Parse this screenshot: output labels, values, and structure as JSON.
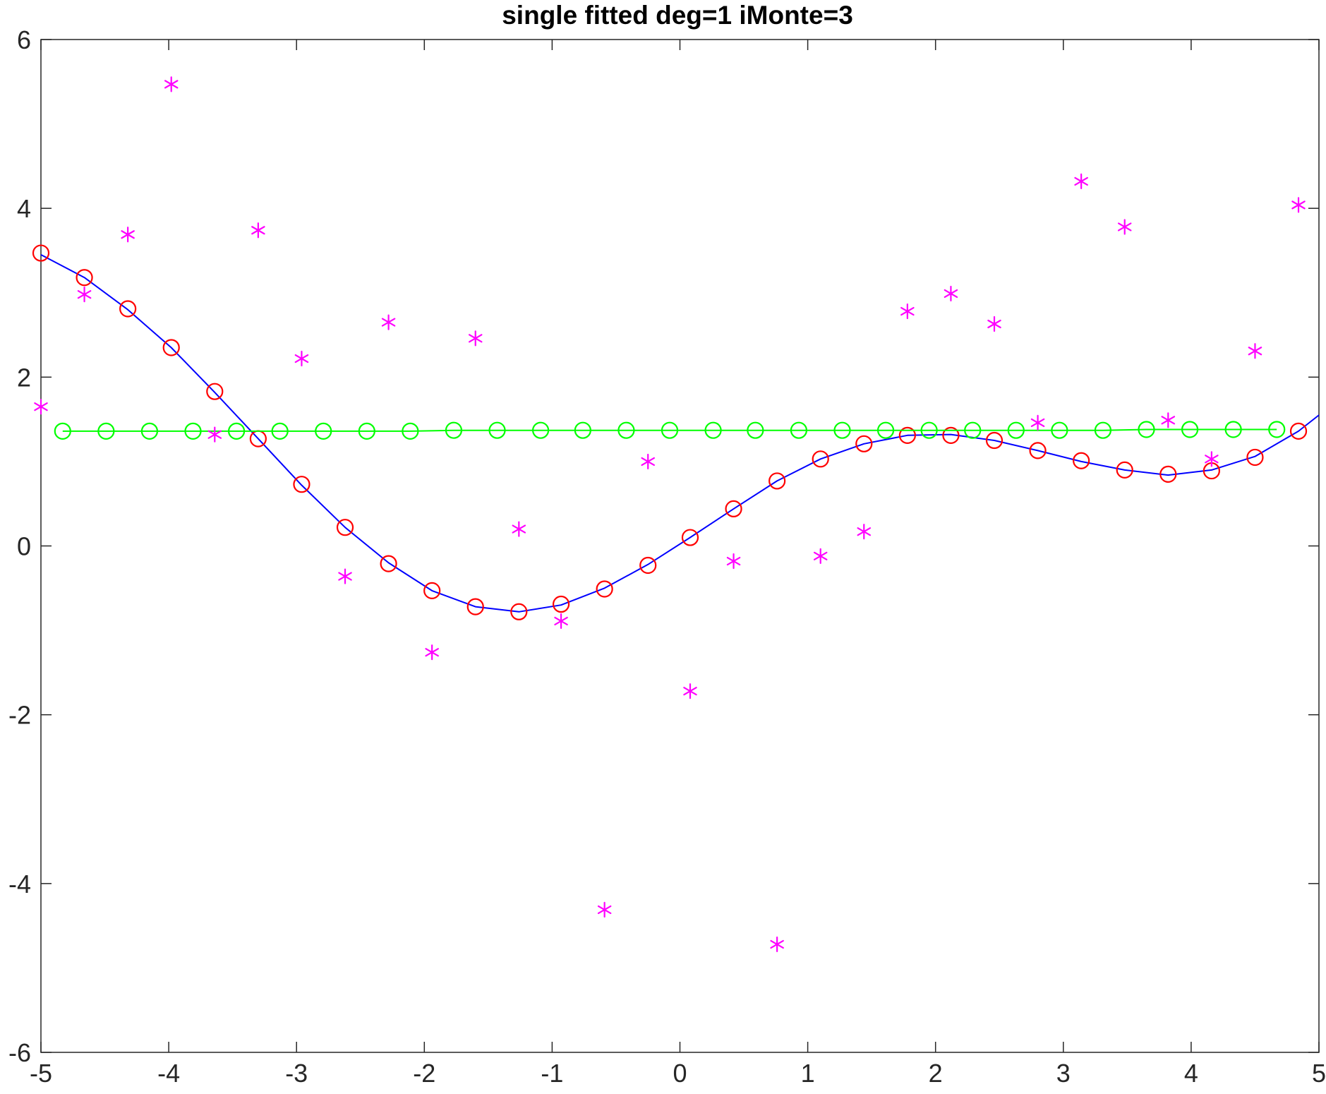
{
  "chart_data": {
    "type": "line",
    "title": "single fitted deg=1 iMonte=3",
    "xlabel": "",
    "ylabel": "",
    "xlim": [
      -5,
      5
    ],
    "ylim": [
      -6,
      6
    ],
    "x_ticks": [
      -5,
      -4,
      -3,
      -2,
      -1,
      0,
      1,
      2,
      3,
      4,
      5
    ],
    "y_ticks": [
      -6,
      -4,
      -2,
      0,
      2,
      4,
      6
    ],
    "x_tick_labels": [
      "-5",
      "-4",
      "-3",
      "-2",
      "-1",
      "0",
      "1",
      "2",
      "3",
      "4",
      "5"
    ],
    "y_tick_labels": [
      "-6",
      "-4",
      "-2",
      "0",
      "2",
      "4",
      "6"
    ],
    "grid": false,
    "box": true,
    "series": [
      {
        "style": "solid-line",
        "color": "#0000ff",
        "x": [
          -5.0,
          -4.66,
          -4.32,
          -3.98,
          -3.64,
          -3.3,
          -2.96,
          -2.62,
          -2.28,
          -1.94,
          -1.6,
          -1.26,
          -0.93,
          -0.59,
          -0.25,
          0.08,
          0.42,
          0.76,
          1.1,
          1.44,
          1.78,
          2.12,
          2.46,
          2.8,
          3.14,
          3.48,
          3.82,
          4.16,
          4.5,
          4.84,
          5.0
        ],
        "y": [
          3.45,
          3.18,
          2.8,
          2.35,
          1.82,
          1.27,
          0.72,
          0.22,
          -0.2,
          -0.53,
          -0.72,
          -0.78,
          -0.7,
          -0.5,
          -0.22,
          0.1,
          0.44,
          0.77,
          1.03,
          1.21,
          1.31,
          1.32,
          1.25,
          1.13,
          1.0,
          0.9,
          0.84,
          0.9,
          1.06,
          1.36,
          1.55
        ]
      },
      {
        "style": "circle-markers",
        "color": "#ff0000",
        "x": [
          -5.0,
          -4.66,
          -4.32,
          -3.98,
          -3.64,
          -3.3,
          -2.96,
          -2.62,
          -2.28,
          -1.94,
          -1.6,
          -1.26,
          -0.93,
          -0.59,
          -0.25,
          0.08,
          0.42,
          0.76,
          1.1,
          1.44,
          1.78,
          2.12,
          2.46,
          2.8,
          3.14,
          3.48,
          3.82,
          4.16,
          4.5,
          4.84
        ],
        "y": [
          3.47,
          3.18,
          2.81,
          2.35,
          1.83,
          1.27,
          0.73,
          0.22,
          -0.21,
          -0.53,
          -0.72,
          -0.78,
          -0.69,
          -0.51,
          -0.23,
          0.1,
          0.44,
          0.77,
          1.03,
          1.21,
          1.31,
          1.31,
          1.25,
          1.13,
          1.01,
          0.9,
          0.85,
          0.89,
          1.05,
          1.36
        ]
      },
      {
        "style": "line-with-circle-markers",
        "color": "#00ff00",
        "x": [
          -4.83,
          -4.49,
          -4.15,
          -3.81,
          -3.47,
          -3.13,
          -2.79,
          -2.45,
          -2.11,
          -1.77,
          -1.43,
          -1.09,
          -0.76,
          -0.42,
          -0.08,
          0.26,
          0.59,
          0.93,
          1.27,
          1.61,
          1.95,
          2.29,
          2.63,
          2.97,
          3.31,
          3.65,
          3.99,
          4.33,
          4.67
        ],
        "y": [
          1.36,
          1.36,
          1.36,
          1.36,
          1.36,
          1.36,
          1.36,
          1.36,
          1.36,
          1.37,
          1.37,
          1.37,
          1.37,
          1.37,
          1.37,
          1.37,
          1.37,
          1.37,
          1.37,
          1.37,
          1.37,
          1.37,
          1.37,
          1.37,
          1.37,
          1.38,
          1.38,
          1.38,
          1.38
        ]
      },
      {
        "style": "asterisk-markers",
        "color": "#ff00ff",
        "x": [
          -5.0,
          -4.66,
          -4.32,
          -3.98,
          -3.64,
          -3.3,
          -2.96,
          -2.62,
          -2.28,
          -1.94,
          -1.6,
          -1.26,
          -0.93,
          -0.59,
          -0.25,
          0.08,
          0.42,
          0.76,
          1.1,
          1.44,
          1.78,
          2.12,
          2.46,
          2.8,
          3.14,
          3.48,
          3.82,
          4.16,
          4.5,
          4.84
        ],
        "y": [
          1.65,
          2.98,
          3.69,
          5.47,
          1.32,
          3.74,
          2.22,
          -0.36,
          2.65,
          -1.26,
          2.46,
          0.2,
          -0.89,
          -4.31,
          1.0,
          -1.72,
          -0.18,
          -4.72,
          -0.12,
          0.17,
          2.78,
          2.99,
          2.63,
          1.46,
          4.32,
          3.78,
          1.49,
          1.03,
          2.31,
          4.04
        ]
      }
    ]
  }
}
